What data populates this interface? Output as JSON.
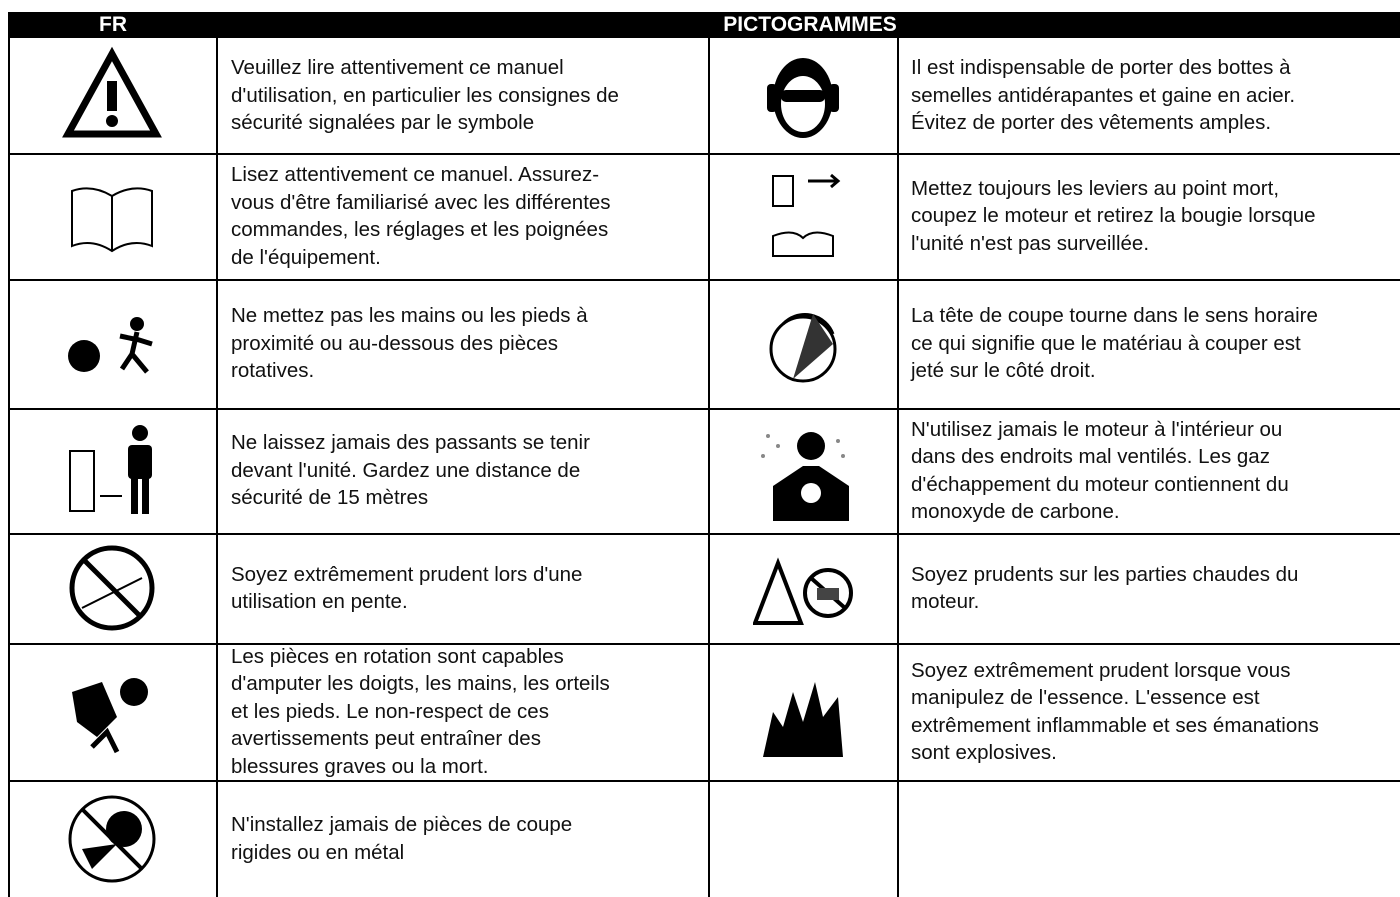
{
  "header": {
    "left": "FR",
    "center": "PICTOGRAMMES"
  },
  "rows": [
    {
      "left": [
        "Veuillez lire attentivement ce manuel",
        "d'utilisation, en particulier les consignes de",
        "sécurité signalées par le symbole"
      ],
      "right": [
        "Il est indispensable de porter des bottes à",
        "semelles antidérapantes et gaine en acier.",
        "Évitez de porter des vêtements amples."
      ]
    },
    {
      "left": [
        "Lisez attentivement ce manuel. Assurez-",
        "vous d'être familiarisé avec les différentes",
        "commandes, les réglages et les poignées",
        "de l'équipement."
      ],
      "right": [
        "Mettez toujours les leviers au point mort,",
        "coupez le moteur et retirez la bougie lorsque",
        "l'unité n'est pas surveillée."
      ]
    },
    {
      "left": [
        "Ne mettez pas les mains ou les pieds à",
        "proximité ou au-dessous des pièces",
        "rotatives."
      ],
      "right": [
        "La tête de coupe tourne dans le sens horaire",
        "ce qui signifie que le matériau à couper est",
        "jeté sur le côté droit."
      ]
    },
    {
      "left": [
        "Ne laissez jamais des passants se tenir",
        "devant l'unité. Gardez une distance de",
        "sécurité de 15 mètres"
      ],
      "right": [
        "N'utilisez jamais le moteur à l'intérieur ou",
        "dans des endroits mal ventilés. Les gaz",
        "d'échappement du moteur contiennent du",
        "monoxyde de carbone."
      ]
    },
    {
      "left": [
        "Soyez extrêmement prudent lors d'une",
        "utilisation en pente."
      ],
      "right": [
        "Soyez prudents sur les parties chaudes du",
        "moteur."
      ]
    },
    {
      "left": [
        "Les pièces en rotation sont capables",
        "d'amputer les doigts, les mains, les orteils",
        "et les pieds. Le non-respect de ces",
        "avertissements peut entraîner des",
        "blessures graves ou la mort."
      ],
      "right": [
        "Soyez extrêmement prudent lorsque vous",
        "manipulez de l'essence. L'essence est",
        "extrêmement inflammable et ses émanations",
        "sont explosives."
      ]
    },
    {
      "left": [
        "N'installez jamais de pièces de coupe",
        "rigides ou en métal"
      ]
    }
  ]
}
